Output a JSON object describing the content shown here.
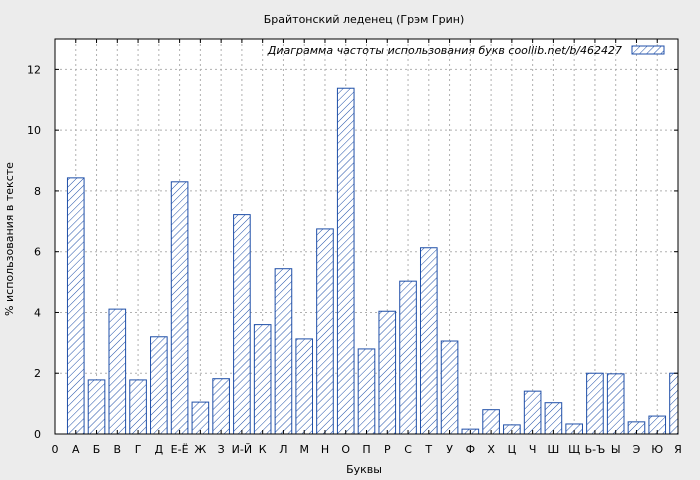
{
  "chart_data": {
    "type": "bar",
    "title": "Брайтонский леденец (Грэм Грин)",
    "xlabel": "Буквы",
    "ylabel": "% использования в тексте",
    "legend": "Диаграмма частоты использования букв  coollib.net/b/462427",
    "legend_position": "top-right",
    "grid": true,
    "ylim": [
      0,
      13
    ],
    "yticks": [
      0,
      2,
      4,
      6,
      8,
      10,
      12
    ],
    "x_tick_labels": [
      "0",
      "А",
      "Б",
      "В",
      "Г",
      "Д",
      "Е-Ё",
      "Ж",
      "З",
      "И-Й",
      "К",
      "Л",
      "М",
      "Н",
      "О",
      "П",
      "Р",
      "С",
      "Т",
      "У",
      "Ф",
      "Х",
      "Ц",
      "Ч",
      "Ш",
      "Щ",
      "Ь-Ъ",
      "Ы",
      "Э",
      "Ю",
      "Я"
    ],
    "categories": [
      "А",
      "Б",
      "В",
      "Г",
      "Д",
      "Е-Ё",
      "Ж",
      "З",
      "И-Й",
      "К",
      "Л",
      "М",
      "Н",
      "О",
      "П",
      "Р",
      "С",
      "Т",
      "У",
      "Ф",
      "Х",
      "Ц",
      "Ч",
      "Ш",
      "Щ",
      "Ь-Ъ",
      "Ы",
      "Э",
      "Ю",
      "Я"
    ],
    "values": [
      8.43,
      1.78,
      4.11,
      1.78,
      3.2,
      8.3,
      1.05,
      1.82,
      7.22,
      3.6,
      5.44,
      3.13,
      6.75,
      11.38,
      2.8,
      4.04,
      5.03,
      6.13,
      3.06,
      0.16,
      0.8,
      0.3,
      1.41,
      1.03,
      0.33,
      2.0,
      1.98,
      0.4,
      0.59,
      2.0
    ],
    "colors": {
      "bar": "#1f4fa8",
      "grid": "#b0b0b0",
      "frame": "#000000",
      "plot_bg": "#ffffff",
      "page_bg": "#ececec"
    }
  }
}
